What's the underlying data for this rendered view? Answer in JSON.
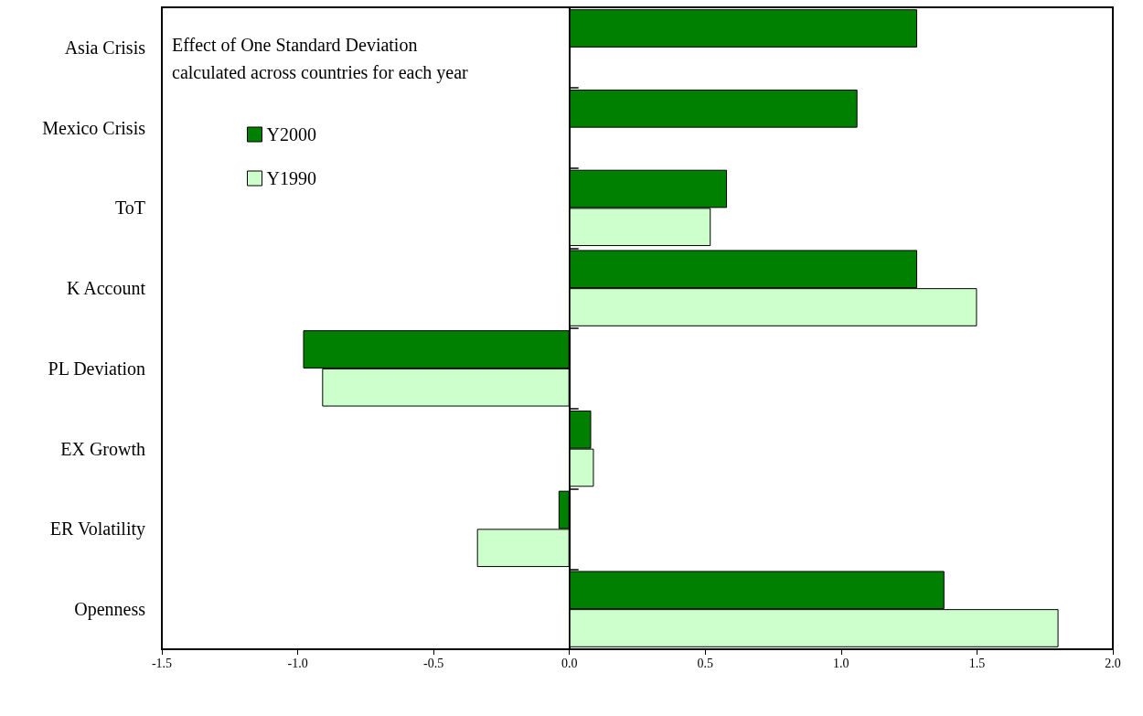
{
  "chart_data": {
    "type": "bar",
    "orientation": "horizontal",
    "categories": [
      "Asia Crisis",
      "Mexico Crisis",
      "ToT",
      "K Account",
      "PL Deviation",
      "EX Growth",
      "ER Volatility",
      "Openness"
    ],
    "series": [
      {
        "name": "Y2000",
        "color": "#008000",
        "values": [
          1.28,
          1.06,
          0.58,
          1.28,
          -0.98,
          0.08,
          -0.04,
          1.38
        ]
      },
      {
        "name": "Y1990",
        "color": "#ccffcc",
        "values": [
          null,
          null,
          0.52,
          1.5,
          -0.91,
          0.09,
          -0.34,
          1.8
        ]
      }
    ],
    "xlim": [
      -1.5,
      2.0
    ],
    "xticks": [
      {
        "value": -1.5,
        "label": "-1.5"
      },
      {
        "value": -1.0,
        "label": "-1.0"
      },
      {
        "value": -0.5,
        "label": "-0.5"
      },
      {
        "value": 0,
        "label": "0.0"
      },
      {
        "value": 0.5,
        "label": "0.5"
      },
      {
        "value": 1.0,
        "label": "1.0"
      },
      {
        "value": 1.5,
        "label": "1.5"
      },
      {
        "value": 2.0,
        "label": "2.0"
      }
    ],
    "annotations": [
      "Effect of One Standard Deviation\ncalculated across countries for each year"
    ],
    "legend": "top left"
  }
}
